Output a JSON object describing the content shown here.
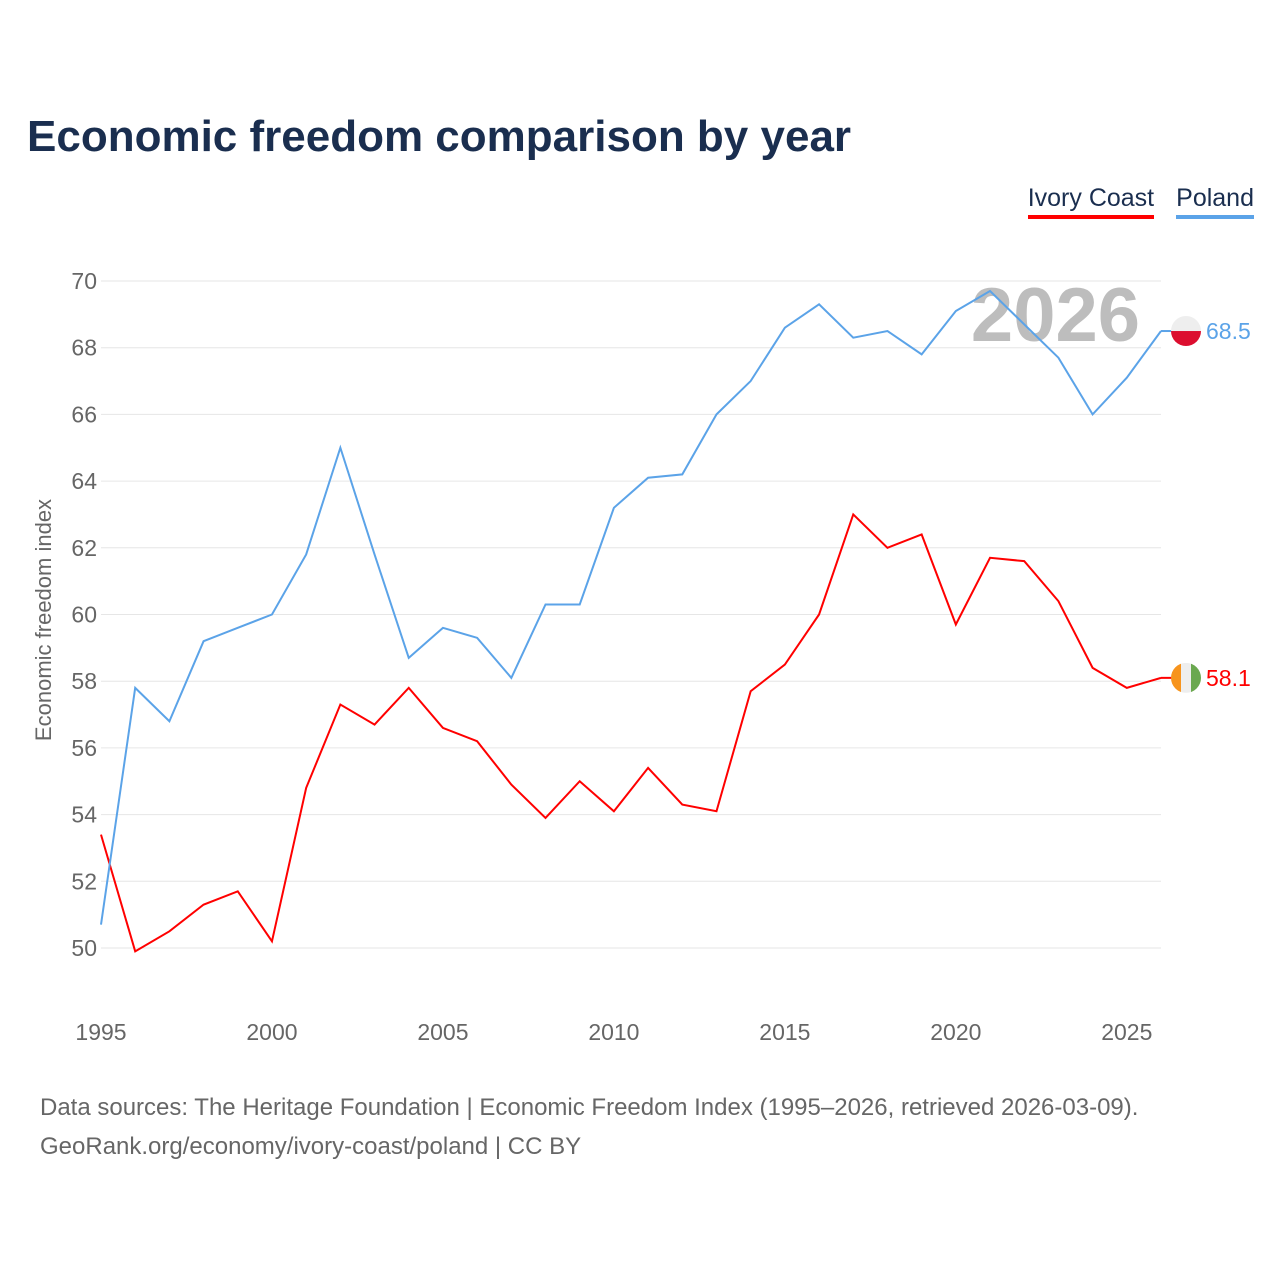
{
  "chart_data": {
    "type": "line",
    "title": "Economic freedom comparison by year",
    "ylabel": "Economic freedom index",
    "xlabel": "",
    "ylim": [
      50,
      70
    ],
    "xlim": [
      1995,
      2026
    ],
    "yticks": [
      50,
      52,
      54,
      56,
      58,
      60,
      62,
      64,
      66,
      68,
      70
    ],
    "xticks": [
      1995,
      2000,
      2005,
      2010,
      2015,
      2020,
      2025
    ],
    "grid": true,
    "legend_position": "top-right",
    "watermark_year": "2026",
    "x": [
      1995,
      1996,
      1997,
      1998,
      1999,
      2000,
      2001,
      2002,
      2003,
      2004,
      2005,
      2006,
      2007,
      2008,
      2009,
      2010,
      2011,
      2012,
      2013,
      2014,
      2015,
      2016,
      2017,
      2018,
      2019,
      2020,
      2021,
      2022,
      2023,
      2024,
      2025,
      2026
    ],
    "series": [
      {
        "name": "Ivory Coast",
        "color": "#ff0000",
        "end_label": "58.1",
        "flag_colors": [
          "#f7941d",
          "#eeeeee",
          "#6aa84f"
        ],
        "values": [
          53.4,
          49.9,
          50.5,
          51.3,
          51.7,
          50.2,
          54.8,
          57.3,
          56.7,
          57.8,
          56.6,
          56.2,
          54.9,
          53.9,
          55.0,
          54.1,
          55.4,
          54.3,
          54.1,
          57.7,
          58.5,
          60.0,
          63.0,
          62.0,
          62.4,
          59.7,
          61.7,
          61.6,
          60.4,
          58.4,
          57.8,
          58.1
        ]
      },
      {
        "name": "Poland",
        "color": "#5ba3e8",
        "end_label": "68.5",
        "flag_colors": [
          "#eeeeee",
          "#dc0e2f"
        ],
        "values": [
          50.7,
          57.8,
          56.8,
          59.2,
          59.6,
          60.0,
          61.8,
          65.0,
          61.8,
          58.7,
          59.6,
          59.3,
          58.1,
          60.3,
          60.3,
          63.2,
          64.1,
          64.2,
          66.0,
          67.0,
          68.6,
          69.3,
          68.3,
          68.5,
          67.8,
          69.1,
          69.7,
          68.7,
          67.7,
          66.0,
          67.1,
          68.5
        ]
      }
    ]
  },
  "footer": {
    "line1": "Data sources: The Heritage Foundation | Economic Freedom Index (1995–2026, retrieved 2026-03-09).",
    "line2": "GeoRank.org/economy/ivory-coast/poland | CC BY"
  }
}
